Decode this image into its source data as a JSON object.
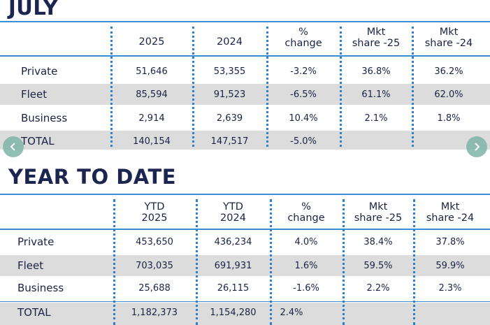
{
  "july": {
    "title": "JULY",
    "headers": [
      "2025",
      "2024",
      "%\nchange",
      "Mkt\nshare -25",
      "Mkt\nshare -24"
    ],
    "rows": [
      {
        "label": "Private",
        "values": [
          "51,646",
          "53,355",
          "-3.2%",
          "36.8%",
          "36.2%"
        ]
      },
      {
        "label": "Fleet",
        "values": [
          "85,594",
          "91,523",
          "-6.5%",
          "61.1%",
          "62.0%"
        ]
      },
      {
        "label": "Business",
        "values": [
          "2,914",
          "2,639",
          "10.4%",
          "2.1%",
          "1.8%"
        ]
      },
      {
        "label": "TOTAL",
        "values": [
          "140,154",
          "147,517",
          "-5.0%",
          "",
          ""
        ]
      }
    ]
  },
  "ytd": {
    "title": "YEAR TO DATE",
    "headers": [
      "YTD\n2025",
      "YTD\n2024",
      "%\nchange",
      "Mkt\nshare -25",
      "Mkt\nshare -24"
    ],
    "rows": [
      {
        "label": "Private",
        "values": [
          "453,650",
          "436,234",
          "4.0%",
          "38.4%",
          "37.8%"
        ]
      },
      {
        "label": "Fleet",
        "values": [
          "703,035",
          "691,931",
          "1.6%",
          "59.5%",
          "59.9%"
        ]
      },
      {
        "label": "Business",
        "values": [
          "25,688",
          "26,115",
          "-1.6%",
          "2.2%",
          "2.3%"
        ]
      },
      {
        "label": "TOTAL",
        "values": [
          "1,182,373",
          "1,154,280",
          "2.4%",
          "",
          ""
        ]
      }
    ]
  },
  "nav": {
    "prev_icon": "chevron-left-icon",
    "next_icon": "chevron-right-icon"
  },
  "colors": {
    "title": "#1b2550",
    "rule": "#3a8ed6",
    "shade": "#dcdcdc",
    "dots": "#2f7fd0",
    "nav": "#7fb5a8"
  }
}
